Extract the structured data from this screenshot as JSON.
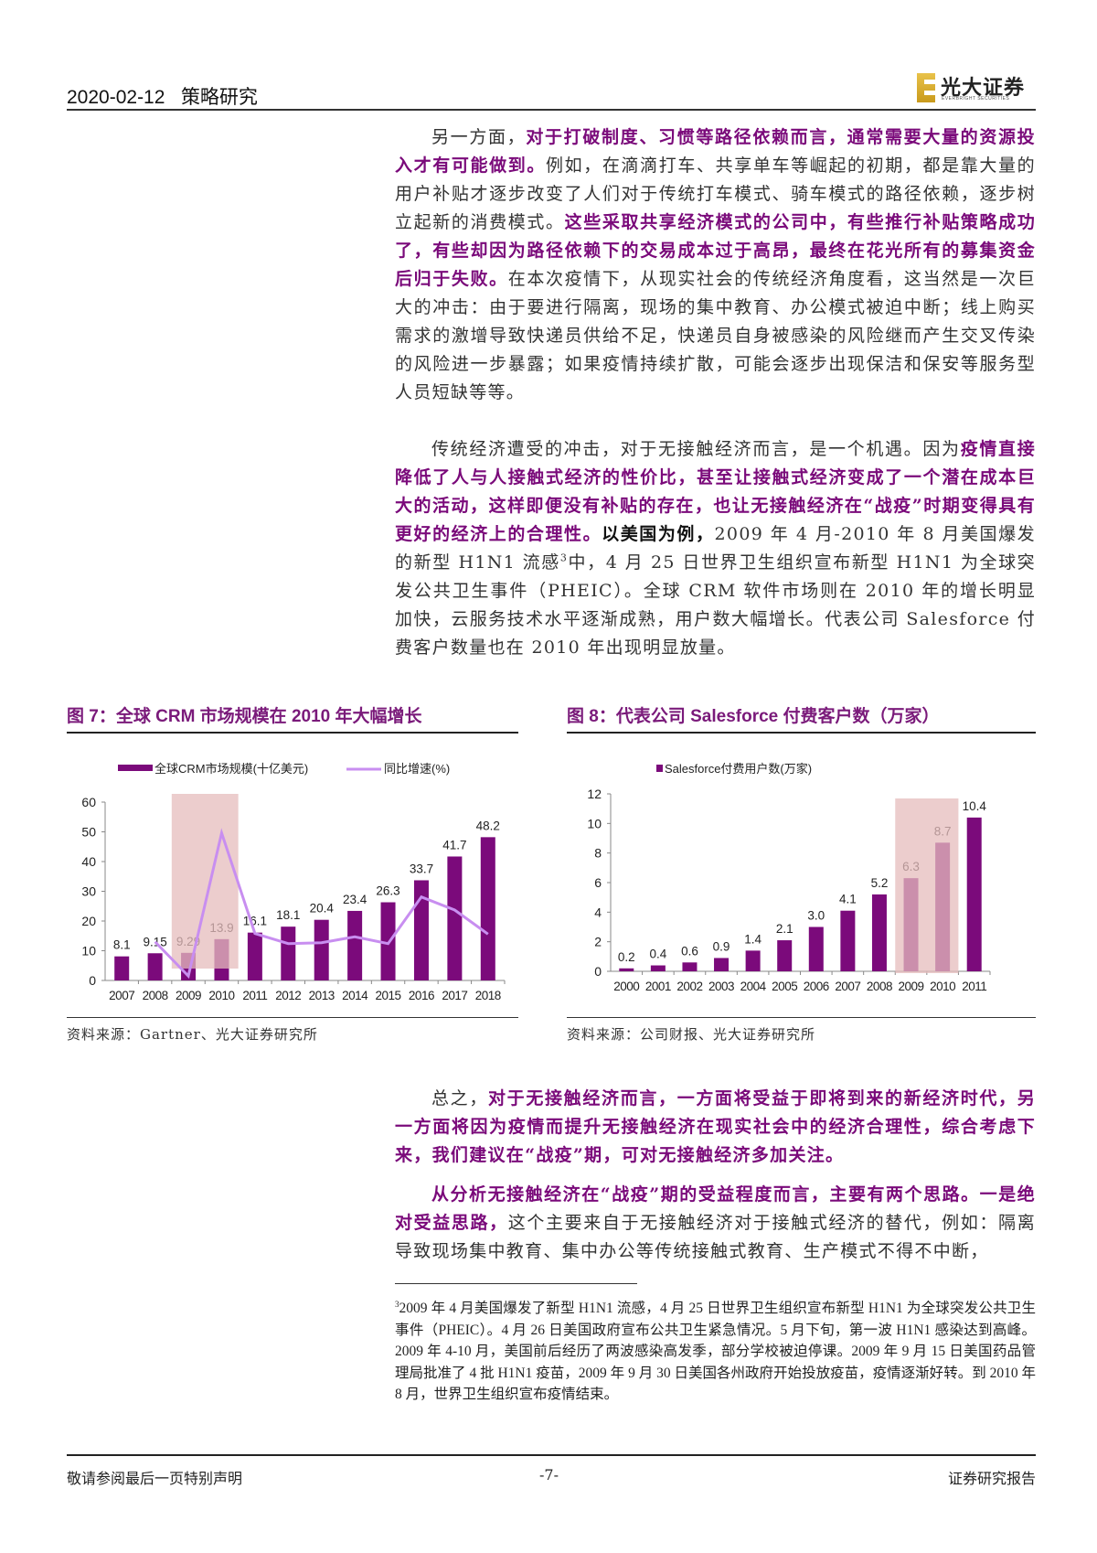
{
  "header": {
    "date": "2020-02-12",
    "section": "策略研究",
    "logo_cn": "光大证券",
    "logo_en": "EVERBRIGHT SECURITIES"
  },
  "paragraphs": [
    [
      {
        "t": "另一方面，",
        "s": "n"
      },
      {
        "t": "对于打破制度、习惯等路径依赖而言，通常需要大量的资源投入才有可能做到。",
        "s": "b"
      },
      {
        "t": "例如，在滴滴打车、共享单车等崛起的初期，都是靠大量的用户补贴才逐步改变了人们对于传统打车模式、骑车模式的路径依赖，逐步树立起新的消费模式。",
        "s": "n"
      },
      {
        "t": "这些采取共享经济模式的公司中，有些推行补贴策略成功了，有些却因为路径依赖下的交易成本过于高昂，最终在花光所有的募集资金后归于失败。",
        "s": "b"
      },
      {
        "t": "在本次疫情下，从现实社会的传统经济角度看，这当然是一次巨大的冲击：由于要进行隔离，现场的集中教育、办公模式被迫中断；线上购买需求的激增导致快递员供给不足，快递员自身被感染的风险继而产生交叉传染的风险进一步暴露；如果疫情持续扩散，可能会逐步出现保洁和保安等服务型人员短缺等等。",
        "s": "n"
      }
    ],
    [
      {
        "t": "传统经济遭受的冲击，对于无接触经济而言，是一个机遇。因为",
        "s": "n"
      },
      {
        "t": "疫情直接降低了人与人接触式经济的性价比，甚至让接触式经济变成了一个潜在成本巨大的活动，这样即便没有补贴的存在，也让无接触经济在“战疫”时期变得具有更好的经济上的合理性。",
        "s": "b"
      },
      {
        "t": "以美国为例，",
        "s": "k"
      },
      {
        "t": "2009 年 4 月-2010 年 8 月美国爆发的新型 H1N1 流感",
        "s": "n"
      },
      {
        "t": "3",
        "s": "sup"
      },
      {
        "t": "中，4 月 25 日世界卫生组织宣布新型 H1N1 为全球突发公共卫生事件（PHEIC）。全球 CRM 软件市场则在 2010 年的增长明显加快，云服务技术水平逐渐成熟，用户数大幅增长。代表公司 Salesforce 付费客户数量也在 2010 年出现明显放量。",
        "s": "n"
      }
    ],
    [
      {
        "t": "总之，",
        "s": "n"
      },
      {
        "t": "对于无接触经济而言，一方面将受益于即将到来的新经济时代，另一方面将因为疫情而提升无接触经济在现实社会中的经济合理性，综合考虑下来，我们建议在“战疫”期，可对无接触经济多加关注。",
        "s": "b"
      }
    ],
    [
      {
        "t": "从分析无接触经济在“战疫”期的受益程度而言，主要有两个思路。一是绝对受益思路，",
        "s": "b"
      },
      {
        "t": "这个主要来自于无接触经济对于接触式经济的替代，例如：隔离导致现场集中教育、集中办公等传统接触式教育、生产模式不得不中断，",
        "s": "n"
      }
    ]
  ],
  "figures": [
    {
      "title": "图 7：全球 CRM 市场规模在 2010 年大幅增长",
      "source": "资料来源：Gartner、光大证券研究所"
    },
    {
      "title": "图 8：代表公司 Salesforce 付费客户数（万家）",
      "source": "资料来源：公司财报、光大证券研究所"
    }
  ],
  "chart_data": [
    {
      "type": "bar",
      "categories": [
        "2007",
        "2008",
        "2009",
        "2010",
        "2011",
        "2012",
        "2013",
        "2014",
        "2015",
        "2016",
        "2017",
        "2018"
      ],
      "series": [
        {
          "name": "全球CRM市场规模(十亿美元)",
          "type": "bar",
          "values": [
            8.1,
            9.15,
            9.29,
            13.9,
            16.1,
            18.1,
            20.4,
            23.4,
            26.3,
            33.7,
            41.7,
            48.2
          ],
          "labels": [
            "8.1",
            "9.15",
            "9.29",
            "13.9",
            "16.1",
            "18.1",
            "20.4",
            "23.4",
            "26.3",
            "33.7",
            "41.7",
            "48.2"
          ]
        },
        {
          "name": "同比增速(%)",
          "type": "line",
          "values": [
            null,
            13,
            1.5,
            49.6,
            15.8,
            12.4,
            12.7,
            14.7,
            12.4,
            28.1,
            23.7,
            15.6
          ]
        }
      ],
      "yticks": [
        "0",
        "10",
        "20",
        "30",
        "40",
        "50",
        "60"
      ],
      "ylim": [
        0,
        60
      ],
      "highlight": [
        "2009",
        "2010"
      ],
      "legend": "top",
      "grid": false,
      "colors": {
        "bar": "#7b0a7b",
        "line": "#c88ef0",
        "highlight": "#e6bcbc"
      }
    },
    {
      "type": "bar",
      "categories": [
        "2000",
        "2001",
        "2002",
        "2003",
        "2004",
        "2005",
        "2006",
        "2007",
        "2008",
        "2009",
        "2010",
        "2011"
      ],
      "series": [
        {
          "name": "Salesforce付费用户数(万家)",
          "values": [
            0.2,
            0.4,
            0.6,
            0.9,
            1.4,
            2.1,
            3.0,
            4.1,
            5.2,
            6.3,
            8.7,
            10.4
          ],
          "labels": [
            "0.2",
            "0.4",
            "0.6",
            "0.9",
            "1.4",
            "2.1",
            "3.0",
            "4.1",
            "5.2",
            "6.3",
            "8.7",
            "10.4"
          ]
        }
      ],
      "yticks": [
        "0",
        "2",
        "4",
        "6",
        "8",
        "10",
        "12"
      ],
      "ylim": [
        0,
        12
      ],
      "highlight": [
        "2009",
        "2010"
      ],
      "legend": "top",
      "grid": false,
      "colors": {
        "bar": "#7b0a7b",
        "highlight": "#e6bcbc"
      }
    }
  ],
  "footnote": {
    "mark": "3",
    "text": "2009 年 4 月美国爆发了新型 H1N1 流感，4 月 25 日世界卫生组织宣布新型 H1N1 为全球突发公共卫生事件（PHEIC）。4 月 26 日美国政府宣布公共卫生紧急情况。5 月下旬，第一波 H1N1 感染达到高峰。2009 年 4-10 月，美国前后经历了两波感染高发季，部分学校被迫停课。2009 年 9 月 15 日美国药品管理局批准了 4 批 H1N1 疫苗，2009 年 9 月 30 日美国各州政府开始投放疫苗，疫情逐渐好转。到 2010 年 8 月，世界卫生组织宣布疫情结束。"
  },
  "footer": {
    "left": "敬请参阅最后一页特别声明",
    "page": "-7-",
    "right": "证券研究报告"
  }
}
